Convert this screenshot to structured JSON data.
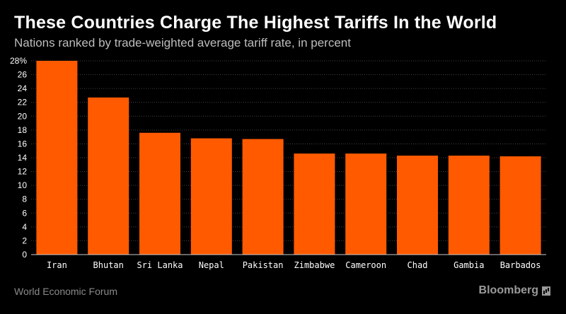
{
  "header": {
    "title": "These Countries Charge The Highest Tariffs In the World",
    "subtitle": "Nations ranked by trade-weighted average tariff rate, in percent"
  },
  "footer": {
    "source": "World Economic Forum",
    "brand": "Bloomberg"
  },
  "colors": {
    "bar": "#ff5a00",
    "background": "#000000",
    "grid": "#444444"
  },
  "chart_data": {
    "type": "bar",
    "title": "These Countries Charge The Highest Tariffs In the World",
    "subtitle": "Nations ranked by trade-weighted average tariff rate, in percent",
    "categories": [
      "Iran",
      "Bhutan",
      "Sri Lanka",
      "Nepal",
      "Pakistan",
      "Zimbabwe",
      "Cameroon",
      "Chad",
      "Gambia",
      "Barbados"
    ],
    "values": [
      28.0,
      22.7,
      17.6,
      16.8,
      16.7,
      14.6,
      14.6,
      14.3,
      14.3,
      14.2
    ],
    "ylim": [
      0,
      28
    ],
    "yticks": [
      0,
      2,
      4,
      6,
      8,
      10,
      12,
      14,
      16,
      18,
      20,
      22,
      24,
      26,
      28
    ],
    "ytick_labels": [
      "0",
      "2",
      "4",
      "6",
      "8",
      "10",
      "12",
      "14",
      "16",
      "18",
      "20",
      "22",
      "24",
      "26",
      "28%"
    ],
    "grid": true,
    "xlabel": "",
    "ylabel": ""
  }
}
